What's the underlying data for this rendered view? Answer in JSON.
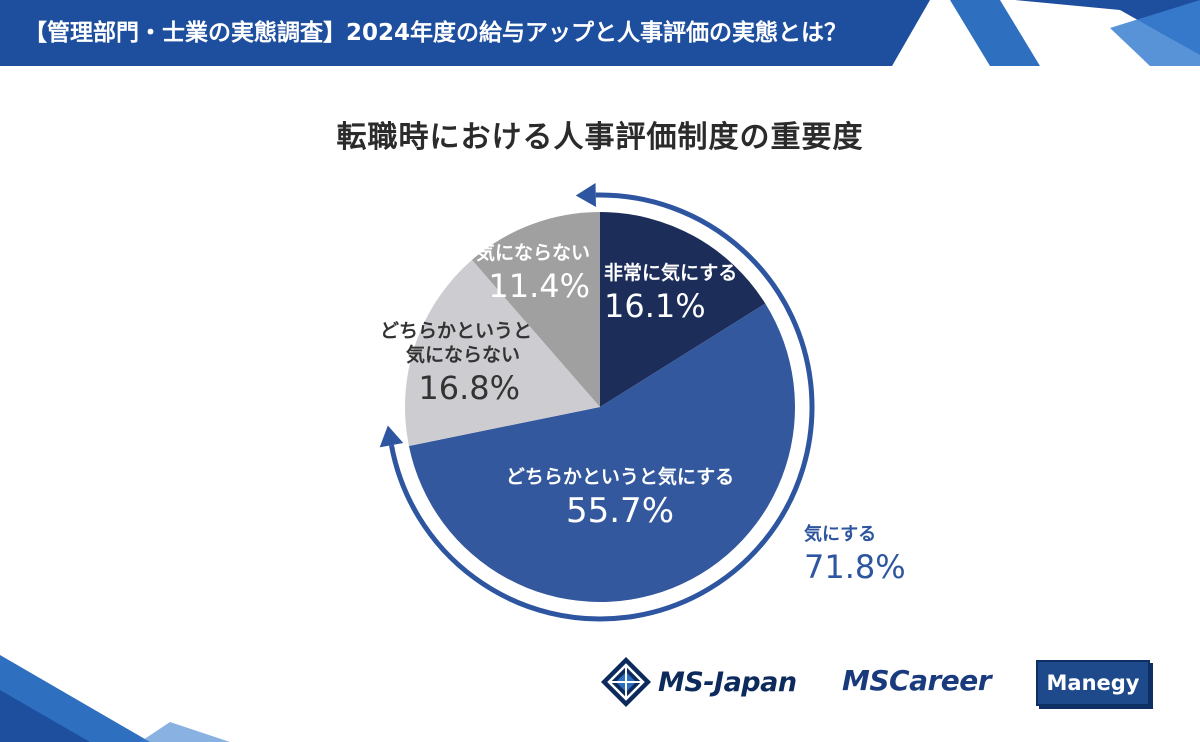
{
  "header": {
    "title": "【管理部門・士業の実態調査】2024年度の給与アップと人事評価の実態とは？",
    "band_color": "#1e4f9e"
  },
  "chart_data": {
    "type": "pie",
    "title": "転職時における人事評価制度の重要度",
    "slices": [
      {
        "label": "非常に気にする",
        "value": 16.1,
        "display": "16.1%",
        "color": "#1c2d5a",
        "text_color": "#ffffff"
      },
      {
        "label": "どちらかというと気にする",
        "value": 55.7,
        "display": "55.7%",
        "color": "#33589e",
        "text_color": "#ffffff"
      },
      {
        "label": "どちらかというと気にならない",
        "label_lines": [
          "どちらかというと",
          "気にならない"
        ],
        "value": 16.8,
        "display": "16.8%",
        "color": "#cdcdd1",
        "text_color": "#333333"
      },
      {
        "label": "全く気にならない",
        "value": 11.4,
        "display": "11.4%",
        "color": "#a0a0a0",
        "text_color": "#ffffff"
      }
    ],
    "start_angle": "12 o'clock, clockwise",
    "annotation": {
      "label": "気にする",
      "value": "71.8%",
      "color": "#2d55a0",
      "spans": [
        "非常に気にする",
        "どちらかというと気にする"
      ]
    }
  },
  "logos": {
    "ms_japan": "MS-Japan",
    "ms_career": "MSCareer",
    "manegy": "Manegy"
  }
}
